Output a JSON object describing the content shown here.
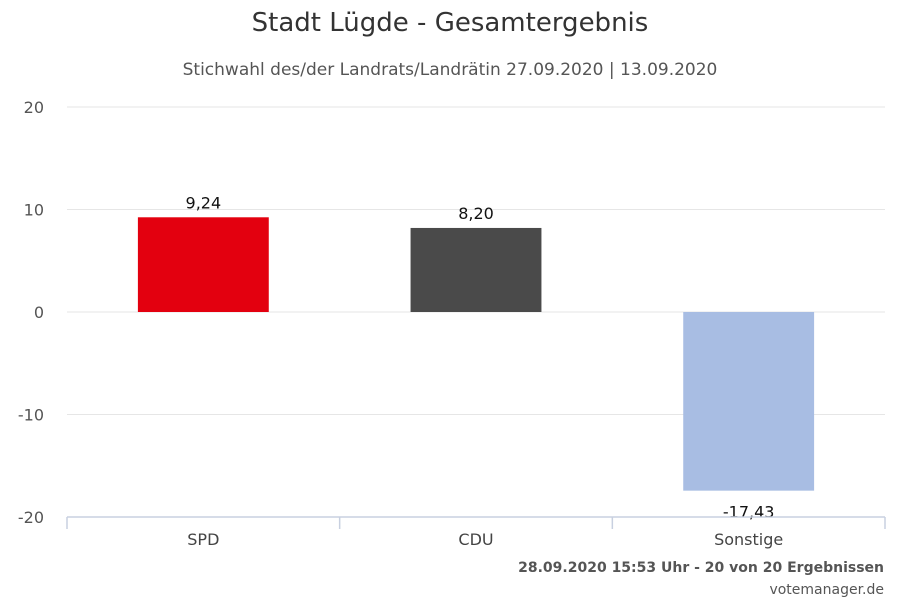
{
  "chart_data": {
    "type": "bar",
    "title": "Stadt Lügde - Gesamtergebnis",
    "subtitle": "Stichwahl des/der Landrats/Landrätin 27.09.2020 | 13.09.2020",
    "categories": [
      "SPD",
      "CDU",
      "Sonstige"
    ],
    "values": [
      9.24,
      8.2,
      -17.43
    ],
    "data_labels": [
      "9,24",
      "8,20",
      "-17,43"
    ],
    "colors": [
      "#e3000f",
      "#4a4a4a",
      "#a8bde3"
    ],
    "ylim": [
      -20,
      20
    ],
    "yticks": [
      20,
      10,
      0,
      -10,
      -20
    ],
    "ytick_labels": [
      "20",
      "10",
      "0",
      "-10",
      "-20"
    ],
    "grid": true,
    "legend": "none"
  },
  "footer": {
    "status": "28.09.2020 15:53 Uhr - 20 von 20 Ergebnissen",
    "credit": "votemanager.de"
  }
}
